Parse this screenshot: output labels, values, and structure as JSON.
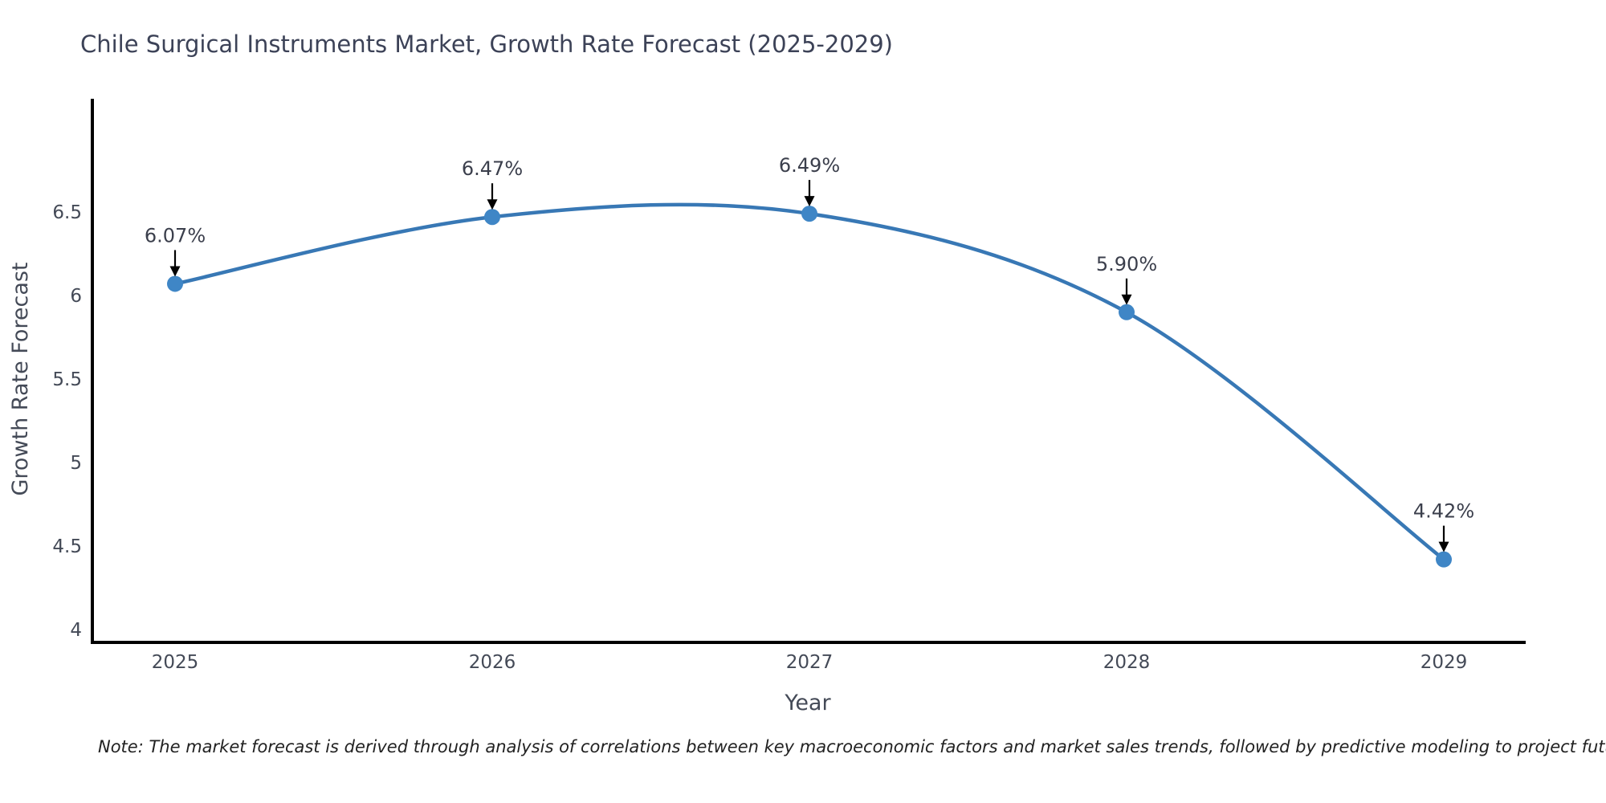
{
  "title": "Chile Surgical Instruments Market, Growth Rate Forecast (2025-2029)",
  "note": "Note: The market forecast is derived through analysis of correlations between key macroeconomic factors and market sales trends, followed by predictive modeling to project future sales",
  "chart_data": {
    "type": "line",
    "title": "Chile Surgical Instruments Market, Growth Rate Forecast (2025-2029)",
    "xlabel": "Year",
    "ylabel": "Growth Rate Forecast",
    "categories": [
      "2025",
      "2026",
      "2027",
      "2028",
      "2029"
    ],
    "values": [
      6.07,
      6.47,
      6.49,
      5.9,
      4.42
    ],
    "point_labels": [
      "6.07%",
      "6.47%",
      "6.49%",
      "5.90%",
      "4.42%"
    ],
    "ytick_labels": [
      "6.5",
      "6",
      "5.5",
      "5",
      "4.5",
      "4"
    ],
    "ytick_values": [
      6.5,
      6,
      5.5,
      5,
      4.5,
      4
    ],
    "ylim": [
      3.9,
      7.2
    ],
    "grid": false,
    "legend": "none",
    "line_style": "spline",
    "annotation_arrows": true,
    "colors": {
      "line": "#3878b5",
      "marker": "#3f86c6",
      "axis": "#000000",
      "tick_label": "#444a57",
      "axis_title": "#444a57",
      "annotation": "#3b3f4c",
      "title": "#3c4257",
      "note": "#222222",
      "background": "#ffffff"
    }
  }
}
